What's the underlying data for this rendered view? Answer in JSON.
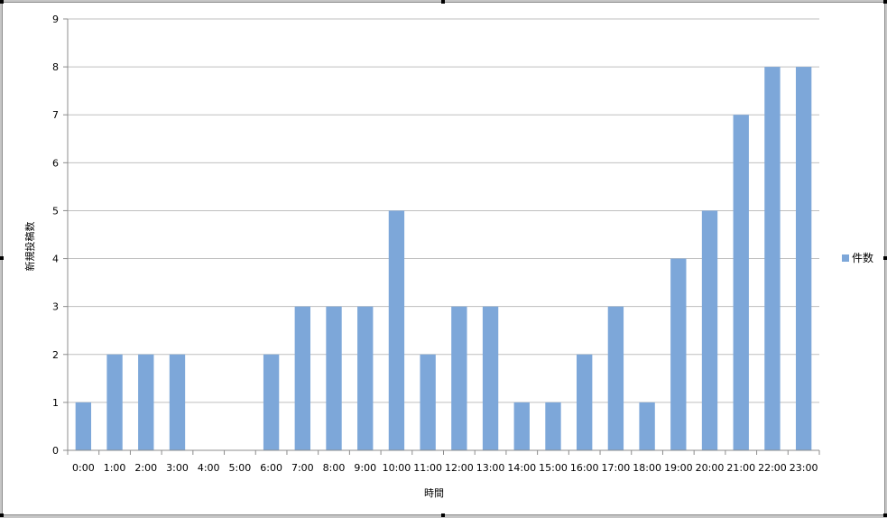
{
  "chart_data": {
    "type": "bar",
    "title": "",
    "xlabel": "時間",
    "ylabel": "新規投稿数",
    "categories": [
      "0:00",
      "1:00",
      "2:00",
      "3:00",
      "4:00",
      "5:00",
      "6:00",
      "7:00",
      "8:00",
      "9:00",
      "10:00",
      "11:00",
      "12:00",
      "13:00",
      "14:00",
      "15:00",
      "16:00",
      "17:00",
      "18:00",
      "19:00",
      "20:00",
      "21:00",
      "22:00",
      "23:00"
    ],
    "series": [
      {
        "name": "件数",
        "color": "#7da7d9",
        "values": [
          1,
          2,
          2,
          2,
          0,
          0,
          2,
          3,
          3,
          3,
          5,
          2,
          3,
          3,
          1,
          1,
          2,
          3,
          1,
          4,
          5,
          7,
          8,
          8
        ]
      }
    ],
    "ylim": [
      0,
      9
    ],
    "yticks": [
      0,
      1,
      2,
      3,
      4,
      5,
      6,
      7,
      8,
      9
    ],
    "grid": true,
    "legend_position": "right"
  }
}
